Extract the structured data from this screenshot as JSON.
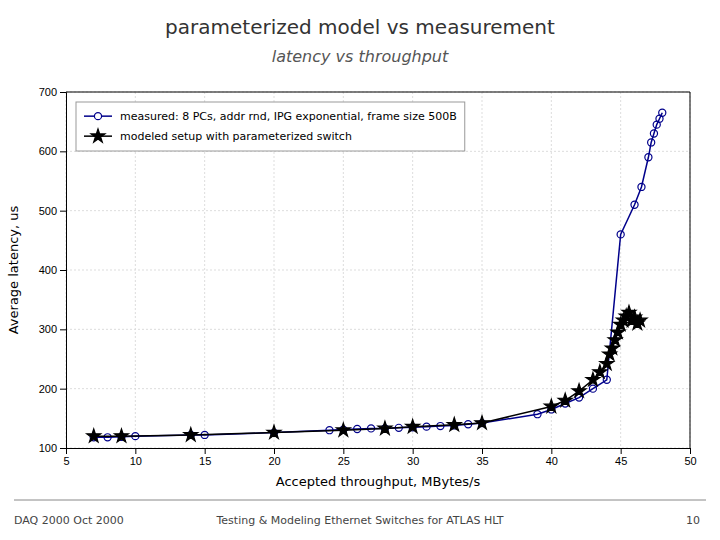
{
  "chart_data": {
    "type": "line",
    "title": "parameterized model vs measurement",
    "subtitle": "latency vs throughput",
    "x_label": "Accepted throughput, MBytes/s",
    "y_label": "Average latency, us",
    "annotations": [
      "DAQ 2000 Oct 2000",
      "Testing & Modeling Ethernet Switches for ATLAS HLT",
      "10"
    ],
    "xlim": [
      5,
      50
    ],
    "ylim": [
      100,
      700
    ],
    "xticks": [
      5,
      10,
      15,
      20,
      25,
      30,
      35,
      40,
      45,
      50
    ],
    "yticks": [
      100,
      200,
      300,
      400,
      500,
      600,
      700
    ],
    "grid": true,
    "legend": "upper left",
    "series": [
      {
        "name": "measured: 8 PCs, addr rnd, IPG exponential, frame size 500B",
        "color": "#00008B",
        "marker": "open-circle",
        "x": [
          7,
          8,
          9,
          10,
          14,
          15,
          20,
          24,
          25,
          26,
          27,
          28,
          29,
          30,
          31,
          32,
          33,
          34,
          35,
          39,
          40,
          41,
          42,
          43,
          44,
          45,
          46,
          46.5,
          47,
          47.2,
          47.4,
          47.6,
          47.8,
          48
        ],
        "values": [
          118,
          118,
          119,
          120,
          122,
          122,
          126,
          130,
          131,
          132,
          133,
          133,
          134,
          135,
          136,
          137,
          138,
          140,
          142,
          157,
          165,
          175,
          185,
          200,
          215,
          460,
          510,
          540,
          590,
          615,
          630,
          645,
          655,
          665
        ]
      },
      {
        "name": "modeled setup with parameterized switch",
        "color": "#000000",
        "marker": "star",
        "x": [
          7,
          9,
          14,
          20,
          25,
          28,
          30,
          33,
          35,
          40,
          41,
          42,
          43,
          43.5,
          44,
          44.2,
          44.4,
          44.6,
          44.8,
          45.0,
          45.2,
          45.4,
          45.6,
          45.8,
          46.0,
          46.2,
          46.4
        ],
        "values": [
          120,
          120,
          122,
          126,
          130,
          133,
          136,
          139,
          142,
          170,
          180,
          196,
          215,
          228,
          242,
          258,
          268,
          282,
          295,
          308,
          315,
          322,
          328,
          315,
          320,
          310,
          315
        ]
      }
    ]
  }
}
